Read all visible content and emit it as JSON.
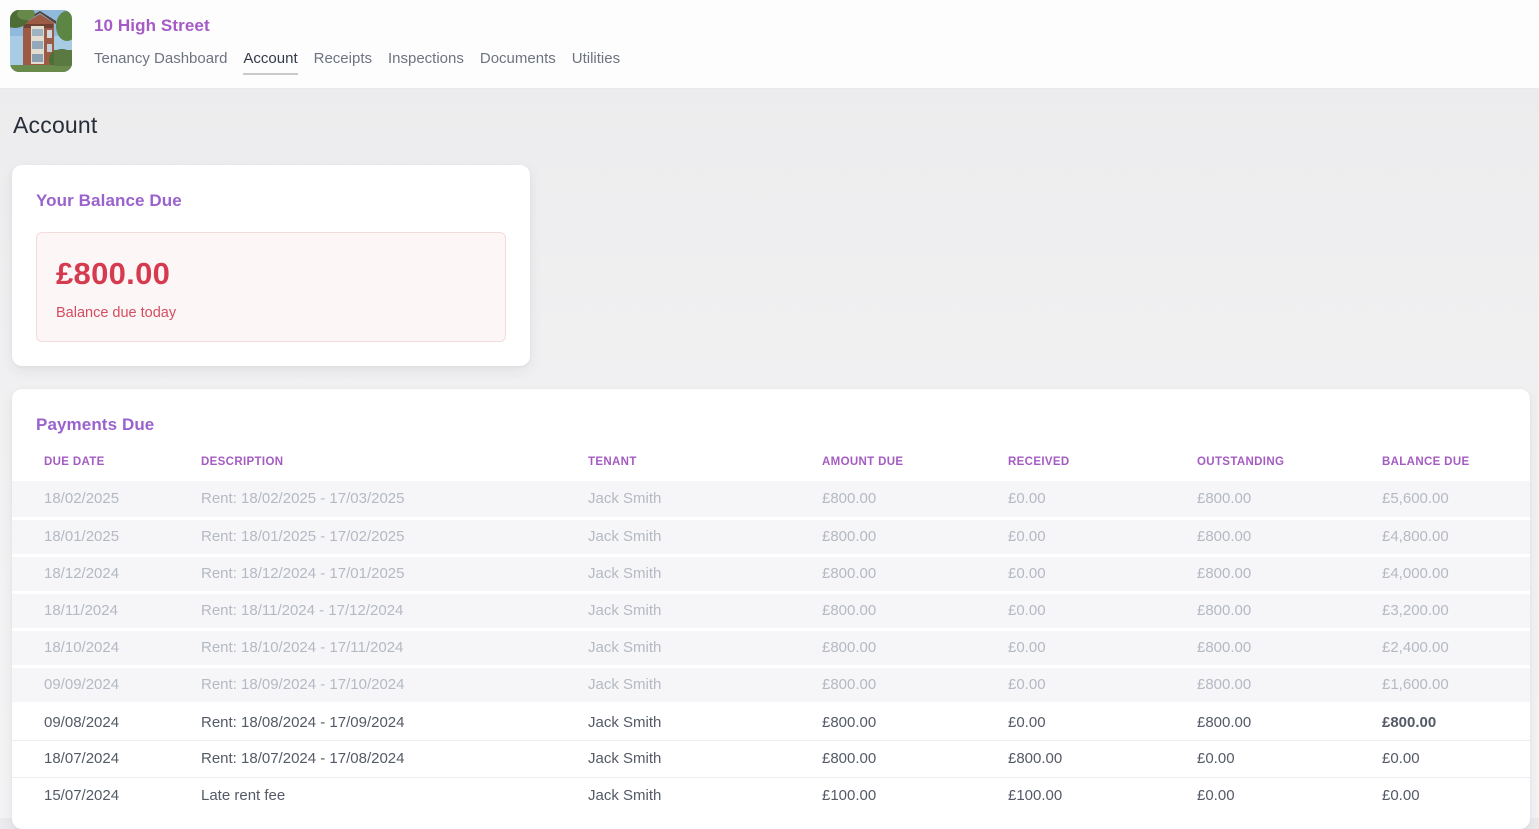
{
  "header": {
    "property_name": "10 High Street",
    "nav": [
      {
        "label": "Tenancy Dashboard",
        "active": false
      },
      {
        "label": "Account",
        "active": true
      },
      {
        "label": "Receipts",
        "active": false
      },
      {
        "label": "Inspections",
        "active": false
      },
      {
        "label": "Documents",
        "active": false
      },
      {
        "label": "Utilities",
        "active": false
      }
    ]
  },
  "page": {
    "title": "Account"
  },
  "balance_card": {
    "title": "Your Balance Due",
    "amount": "£800.00",
    "caption": "Balance due today"
  },
  "payments": {
    "title": "Payments Due",
    "columns": [
      "DUE DATE",
      "DESCRIPTION",
      "TENANT",
      "AMOUNT DUE",
      "RECEIVED",
      "OUTSTANDING",
      "BALANCE DUE"
    ],
    "rows": [
      {
        "due_date": "18/02/2025",
        "description": "Rent: 18/02/2025 - 17/03/2025",
        "tenant": "Jack Smith",
        "amount_due": "£800.00",
        "received": "£0.00",
        "outstanding": "£800.00",
        "balance_due": "£5,600.00",
        "muted": true,
        "balance_highlight": false
      },
      {
        "due_date": "18/01/2025",
        "description": "Rent: 18/01/2025 - 17/02/2025",
        "tenant": "Jack Smith",
        "amount_due": "£800.00",
        "received": "£0.00",
        "outstanding": "£800.00",
        "balance_due": "£4,800.00",
        "muted": true,
        "balance_highlight": false
      },
      {
        "due_date": "18/12/2024",
        "description": "Rent: 18/12/2024 - 17/01/2025",
        "tenant": "Jack Smith",
        "amount_due": "£800.00",
        "received": "£0.00",
        "outstanding": "£800.00",
        "balance_due": "£4,000.00",
        "muted": true,
        "balance_highlight": false
      },
      {
        "due_date": "18/11/2024",
        "description": "Rent: 18/11/2024 - 17/12/2024",
        "tenant": "Jack Smith",
        "amount_due": "£800.00",
        "received": "£0.00",
        "outstanding": "£800.00",
        "balance_due": "£3,200.00",
        "muted": true,
        "balance_highlight": false
      },
      {
        "due_date": "18/10/2024",
        "description": "Rent: 18/10/2024 - 17/11/2024",
        "tenant": "Jack Smith",
        "amount_due": "£800.00",
        "received": "£0.00",
        "outstanding": "£800.00",
        "balance_due": "£2,400.00",
        "muted": true,
        "balance_highlight": false
      },
      {
        "due_date": "09/09/2024",
        "description": "Rent: 18/09/2024 - 17/10/2024",
        "tenant": "Jack Smith",
        "amount_due": "£800.00",
        "received": "£0.00",
        "outstanding": "£800.00",
        "balance_due": "£1,600.00",
        "muted": true,
        "balance_highlight": false
      },
      {
        "due_date": "09/08/2024",
        "description": "Rent: 18/08/2024 - 17/09/2024",
        "tenant": "Jack Smith",
        "amount_due": "£800.00",
        "received": "£0.00",
        "outstanding": "£800.00",
        "balance_due": "£800.00",
        "muted": false,
        "balance_highlight": true
      },
      {
        "due_date": "18/07/2024",
        "description": "Rent: 18/07/2024 - 17/08/2024",
        "tenant": "Jack Smith",
        "amount_due": "£800.00",
        "received": "£800.00",
        "outstanding": "£0.00",
        "balance_due": "£0.00",
        "muted": false,
        "balance_highlight": false
      },
      {
        "due_date": "15/07/2024",
        "description": "Late rent fee",
        "tenant": "Jack Smith",
        "amount_due": "£100.00",
        "received": "£100.00",
        "outstanding": "£0.00",
        "balance_due": "£0.00",
        "muted": false,
        "balance_highlight": false
      }
    ]
  },
  "colors": {
    "accent_purple": "#a55ac6",
    "heading_purple": "#9a62cd",
    "alert_red": "#d53a4f",
    "alert_red_bold": "#d6293e",
    "alert_bg": "#fdf6f6",
    "alert_border": "#f3dcdc",
    "muted_text": "#b4b9c3",
    "body_text": "#545a66",
    "muted_row_bg": "#f6f6f8"
  }
}
